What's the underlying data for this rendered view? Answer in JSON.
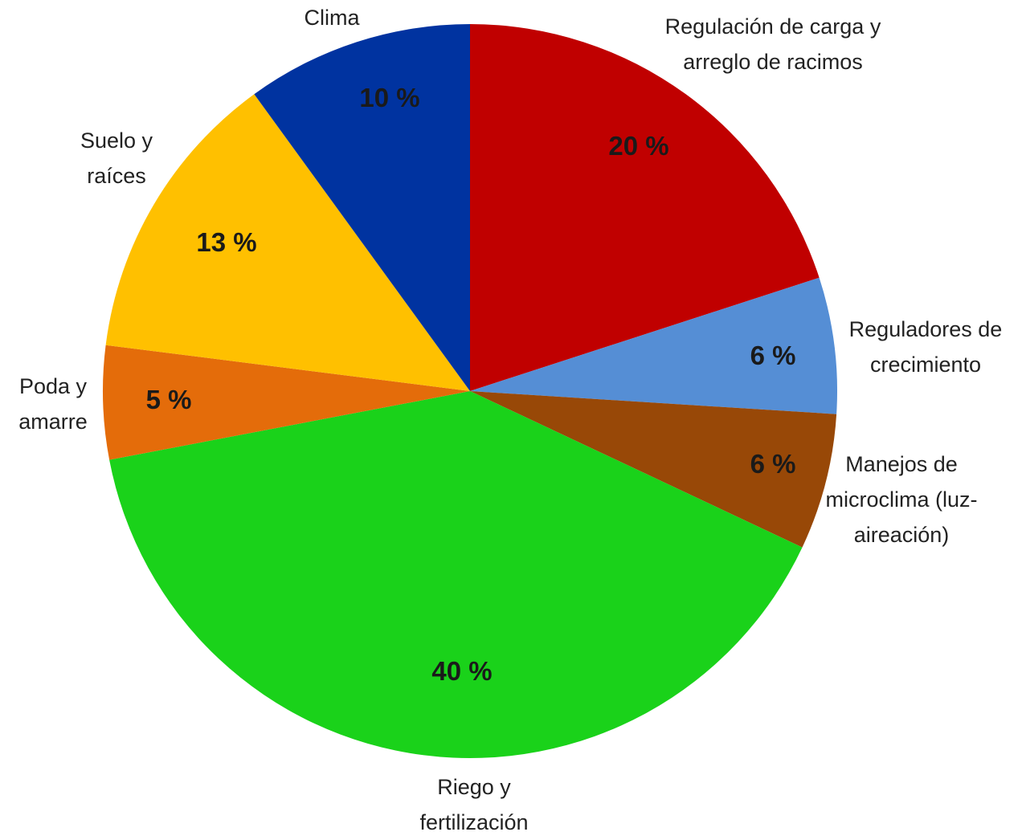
{
  "chart_data": {
    "type": "pie",
    "categories": [
      "Regulación de carga y arreglo de racimos",
      "Reguladores de crecimiento",
      "Manejos de microclima (luz-aireación)",
      "Riego y fertilización",
      "Poda y amarre",
      "Suelo y raíces",
      "Clima"
    ],
    "values": [
      20,
      6,
      6,
      40,
      5,
      13,
      10
    ],
    "value_labels": [
      "20 %",
      "6 %",
      "6 %",
      "40 %",
      "5 %",
      "13 %",
      "10 %"
    ],
    "colors": [
      "#c00000",
      "#558ed5",
      "#984807",
      "#1ad21a",
      "#e46c0a",
      "#ffc000",
      "#0033a0"
    ]
  }
}
